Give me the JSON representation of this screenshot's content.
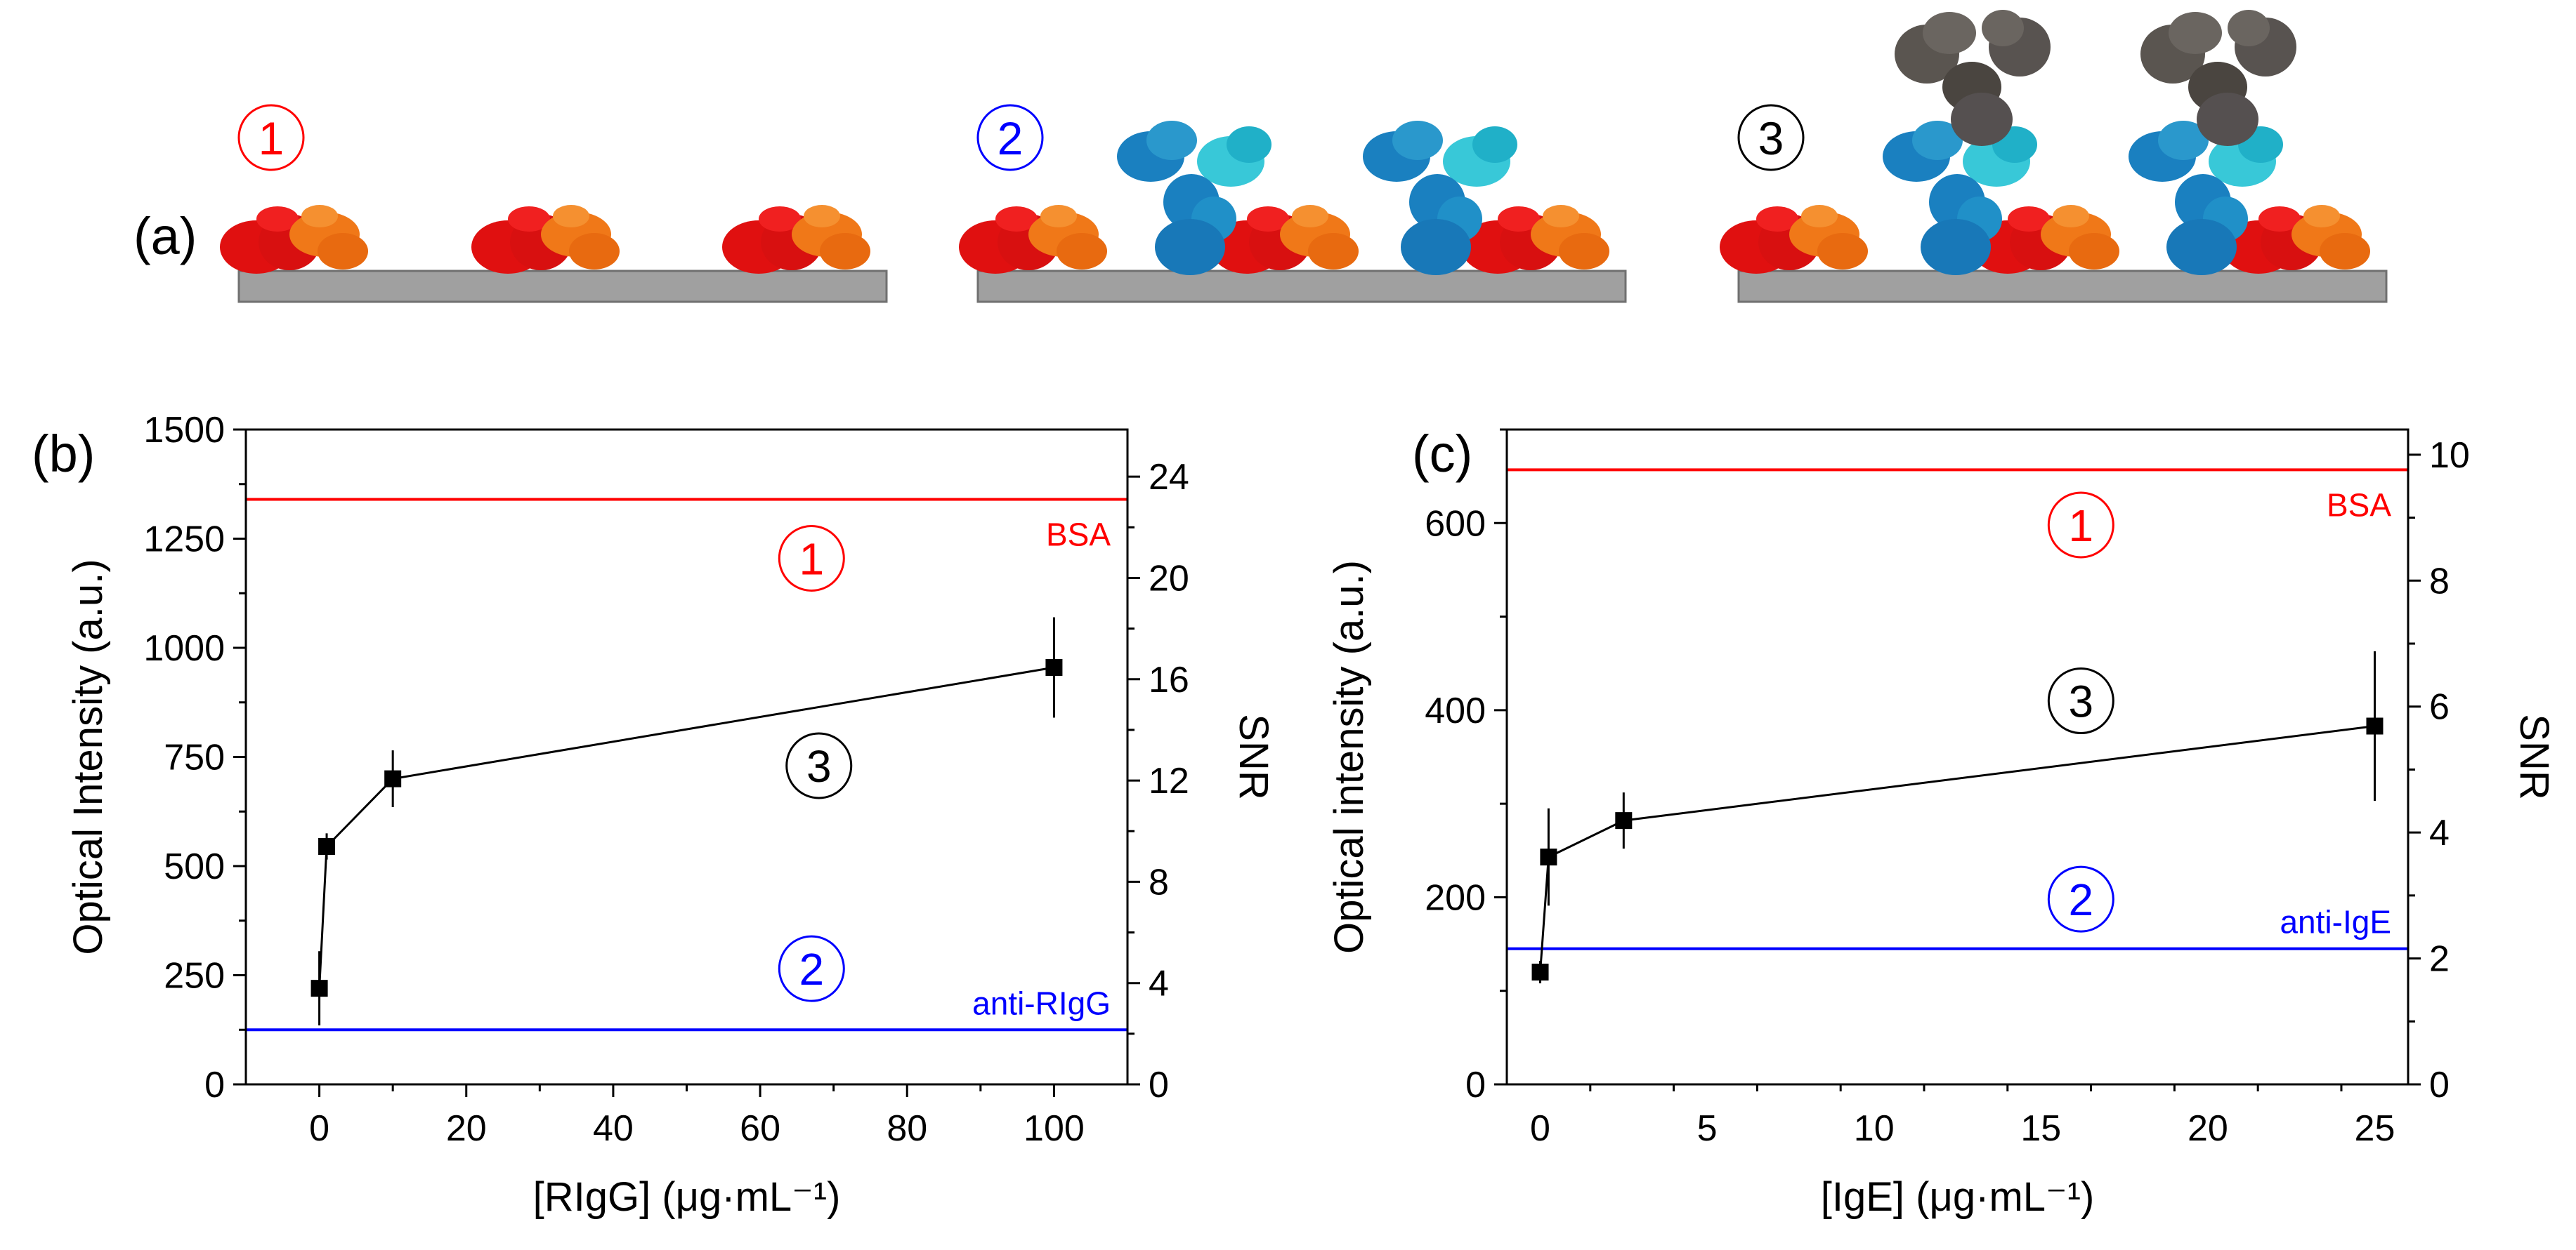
{
  "panel_a": {
    "label": "(a)",
    "steps": [
      {
        "number": "1",
        "color": "#ff0000"
      },
      {
        "number": "2",
        "color": "#0000ff"
      },
      {
        "number": "3",
        "color": "#000000"
      }
    ],
    "colors": {
      "substrate": "#a0a0a0",
      "bsa_red": "#e01010",
      "bsa_orange": "#f07818",
      "capture_ab_dark": "#1a80c0",
      "capture_ab_light": "#38c8d8",
      "target_ab": "#555050"
    }
  },
  "chart_data": [
    {
      "type": "line",
      "panel_label": "(b)",
      "title": "",
      "xlabel": "[RIgG] (μg·mL⁻¹)",
      "ylabel": "Optical Intensity (a.u.)",
      "y2label": "SNR",
      "xlim": [
        -10,
        110
      ],
      "ylim": [
        0,
        1500
      ],
      "y2lim": [
        0,
        25.862
      ],
      "xticks": [
        0,
        20,
        40,
        60,
        80,
        100
      ],
      "xtick_labels": [
        "0",
        "20",
        "40",
        "60",
        "80",
        "100"
      ],
      "yticks": [
        0,
        250,
        500,
        750,
        1000,
        1250,
        1500
      ],
      "ytick_labels": [
        "0",
        "250",
        "500",
        "750",
        "1000",
        "1250",
        "1500"
      ],
      "y2ticks": [
        0,
        4,
        8,
        12,
        16,
        20,
        24
      ],
      "y2tick_labels": [
        "0",
        "4",
        "8",
        "12",
        "16",
        "20",
        "24"
      ],
      "series": [
        {
          "name": "RIgG",
          "x": [
            0,
            1,
            10,
            100
          ],
          "y": [
            220,
            545,
            700,
            955
          ],
          "yerr": [
            85,
            30,
            65,
            115
          ],
          "color": "#000000"
        }
      ],
      "reference_lines": [
        {
          "name": "BSA",
          "value": 1340,
          "color": "#ff0000",
          "step": "1"
        },
        {
          "name": "anti-RIgG",
          "value": 125,
          "color": "#0000ff",
          "step": "2"
        }
      ],
      "annotations": [
        {
          "text": "1",
          "x": 67,
          "y": 1205,
          "color": "#ff0000"
        },
        {
          "text": "3",
          "x": 68,
          "y": 730,
          "color": "#000000"
        },
        {
          "text": "2",
          "x": 67,
          "y": 265,
          "color": "#0000ff"
        }
      ]
    },
    {
      "type": "line",
      "panel_label": "(c)",
      "title": "",
      "xlabel": "[IgE] (μg·mL⁻¹)",
      "ylabel": "Optical intensity (a.u.)",
      "y2label": "SNR",
      "xlim": [
        -1,
        26
      ],
      "ylim": [
        0,
        700
      ],
      "y2lim": [
        0,
        10.4
      ],
      "xticks": [
        0,
        5,
        10,
        15,
        20,
        25
      ],
      "xtick_labels": [
        "0",
        "5",
        "10",
        "15",
        "20",
        "25"
      ],
      "yticks": [
        0,
        200,
        400,
        600
      ],
      "ytick_labels": [
        "0",
        "200",
        "400",
        "600"
      ],
      "y2ticks": [
        0,
        2,
        4,
        6,
        8,
        10
      ],
      "y2tick_labels": [
        "0",
        "2",
        "4",
        "6",
        "8",
        "10"
      ],
      "series": [
        {
          "name": "IgE",
          "x": [
            0,
            0.25,
            2.5,
            25
          ],
          "y": [
            120,
            243,
            282,
            383
          ],
          "yerr": [
            12,
            52,
            30,
            80
          ],
          "color": "#000000"
        }
      ],
      "reference_lines": [
        {
          "name": "BSA",
          "value": 657,
          "color": "#ff0000",
          "step": "1"
        },
        {
          "name": "anti-IgE",
          "value": 145,
          "color": "#0000ff",
          "step": "2"
        }
      ],
      "annotations": [
        {
          "text": "1",
          "x": 16.2,
          "y": 598,
          "color": "#ff0000"
        },
        {
          "text": "3",
          "x": 16.2,
          "y": 410,
          "color": "#000000"
        },
        {
          "text": "2",
          "x": 16.2,
          "y": 198,
          "color": "#0000ff"
        }
      ]
    }
  ]
}
